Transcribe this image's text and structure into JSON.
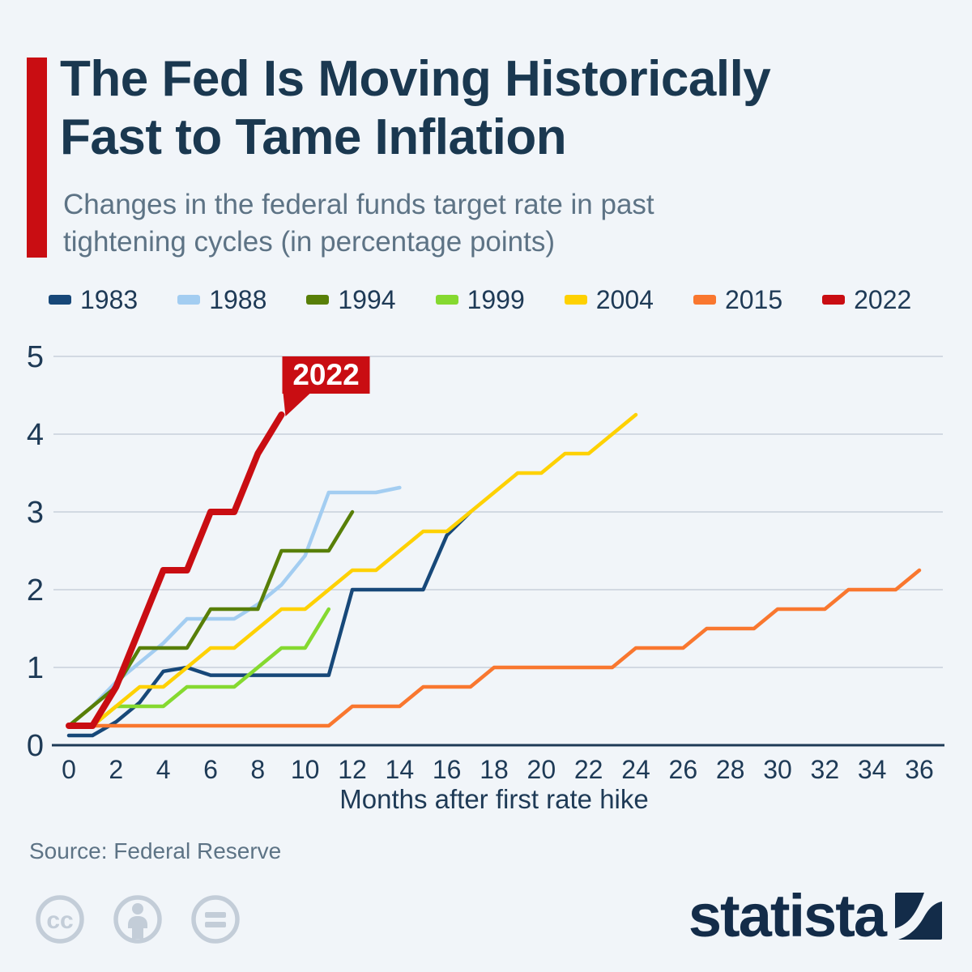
{
  "header": {
    "title_lines": [
      "The Fed Is Moving Historically",
      "Fast to Tame Inflation"
    ],
    "subtitle_lines": [
      "Changes in the federal funds target rate in past",
      "tightening cycles (in percentage points)"
    ],
    "accent_color": "#c90d12"
  },
  "chart_data": {
    "type": "line",
    "title": "",
    "xlabel": "Months after first rate hike",
    "ylabel": "",
    "xlim": [
      0,
      36
    ],
    "ylim": [
      0,
      5
    ],
    "x_ticks": [
      0,
      2,
      4,
      6,
      8,
      10,
      12,
      14,
      16,
      18,
      20,
      22,
      24,
      26,
      28,
      30,
      32,
      34,
      36
    ],
    "y_ticks": [
      0,
      1,
      2,
      3,
      4,
      5
    ],
    "grid": true,
    "legend_position": "top",
    "x_unit": "months since first rate hike (x = array index)",
    "series": [
      {
        "name": "1983",
        "color": "#174879",
        "values": [
          0.125,
          0.125,
          0.3,
          0.55,
          0.95,
          1.0,
          0.9,
          0.9,
          0.9,
          0.9,
          0.9,
          0.9,
          2.0,
          2.0,
          2.0,
          2.0,
          2.7,
          3.0
        ]
      },
      {
        "name": "1988",
        "color": "#a3cdf1",
        "values": [
          0.25,
          0.5,
          0.8125,
          1.0625,
          1.3125,
          1.625,
          1.625,
          1.625,
          1.8125,
          2.0625,
          2.4375,
          3.25,
          3.25,
          3.25,
          3.3125
        ]
      },
      {
        "name": "1994",
        "color": "#587f08",
        "values": [
          0.25,
          0.5,
          0.75,
          1.25,
          1.25,
          1.25,
          1.75,
          1.75,
          1.75,
          2.5,
          2.5,
          2.5,
          3.0
        ]
      },
      {
        "name": "1999",
        "color": "#85d930",
        "values": [
          0.25,
          0.25,
          0.5,
          0.5,
          0.5,
          0.75,
          0.75,
          0.75,
          1.0,
          1.25,
          1.25,
          1.75
        ]
      },
      {
        "name": "2004",
        "color": "#fed102",
        "values": [
          0.25,
          0.25,
          0.5,
          0.75,
          0.75,
          1.0,
          1.25,
          1.25,
          1.5,
          1.75,
          1.75,
          2.0,
          2.25,
          2.25,
          2.5,
          2.75,
          2.75,
          3.0,
          3.25,
          3.5,
          3.5,
          3.75,
          3.75,
          4.0,
          4.25
        ]
      },
      {
        "name": "2015",
        "color": "#f9772f",
        "values": [
          0.25,
          0.25,
          0.25,
          0.25,
          0.25,
          0.25,
          0.25,
          0.25,
          0.25,
          0.25,
          0.25,
          0.25,
          0.5,
          0.5,
          0.5,
          0.75,
          0.75,
          0.75,
          1.0,
          1.0,
          1.0,
          1.0,
          1.0,
          1.0,
          1.25,
          1.25,
          1.25,
          1.5,
          1.5,
          1.5,
          1.75,
          1.75,
          1.75,
          2.0,
          2.0,
          2.0,
          2.25
        ]
      },
      {
        "name": "2022",
        "color": "#c90d12",
        "emphasized": true,
        "values": [
          0.25,
          0.25,
          0.75,
          1.5,
          2.25,
          2.25,
          3.0,
          3.0,
          3.75,
          4.25
        ]
      }
    ],
    "annotation": {
      "text": "2022",
      "month": 9,
      "value": 4.25,
      "color": "#c90d12",
      "text_color": "#ffffff"
    }
  },
  "footer": {
    "source": "Source: Federal Reserve",
    "license_icons": [
      "cc-icon",
      "cc-by-person-icon",
      "cc-nd-equals-icon"
    ],
    "brand": "statista"
  }
}
